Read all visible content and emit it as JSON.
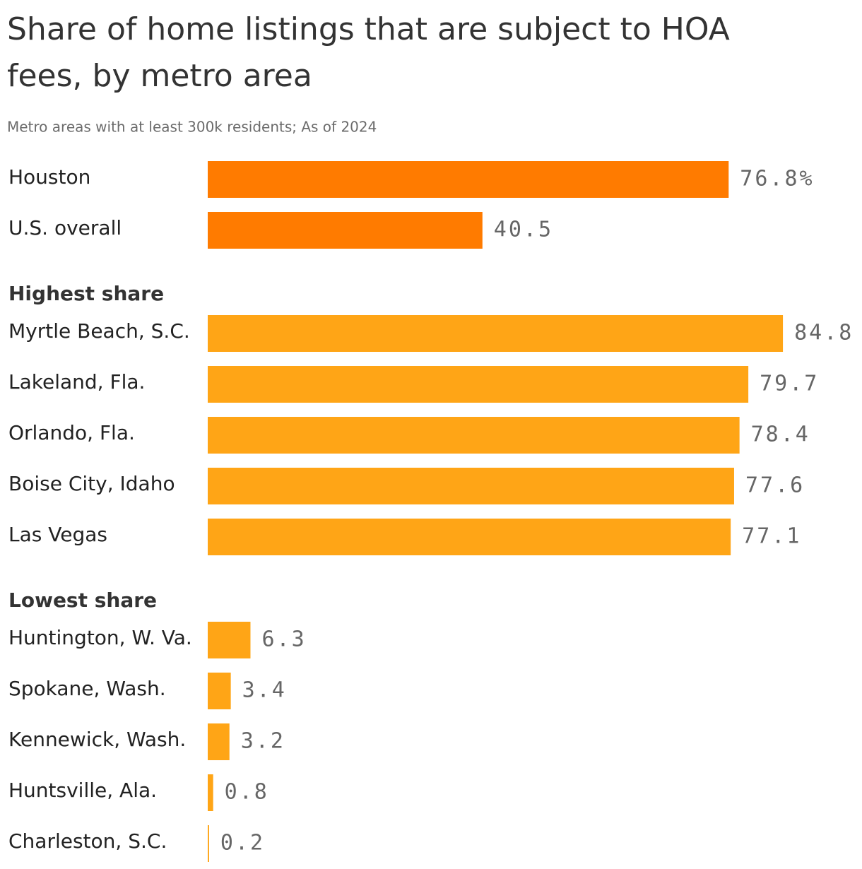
{
  "chart_data": {
    "type": "bar",
    "orientation": "horizontal",
    "title": "Share of home listings that are subject to HOA fees, by metro area",
    "subtitle": "Metro areas with at least 300k residents; As of 2024",
    "groups": [
      {
        "categories": [
          "Houston",
          "U.S. overall"
        ],
        "values": [
          76.8,
          40.5
        ],
        "value_labels": [
          "76.8%",
          "40.5"
        ],
        "color": "#ff7b00"
      },
      {
        "name": "Highest share",
        "categories": [
          "Myrtle Beach, S.C.",
          "Lakeland, Fla.",
          "Orlando, Fla.",
          "Boise City, Idaho",
          "Las Vegas"
        ],
        "values": [
          84.8,
          79.7,
          78.4,
          77.6,
          77.1
        ],
        "color": "#ffa516"
      },
      {
        "name": "Lowest share",
        "categories": [
          "Huntington, W. Va.",
          "Spokane, Wash.",
          "Kennewick, Wash.",
          "Huntsville, Ala.",
          "Charleston, S.C."
        ],
        "values": [
          6.3,
          3.4,
          3.2,
          0.8,
          0.2
        ],
        "color": "#ffa516"
      }
    ]
  }
}
